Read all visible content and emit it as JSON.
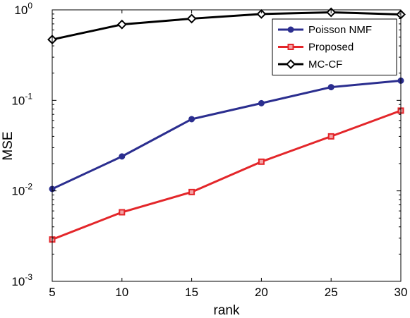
{
  "chart_data": {
    "type": "line",
    "xlabel": "rank",
    "ylabel": "MSE",
    "yscale": "log",
    "x": [
      5,
      10,
      15,
      20,
      25,
      30
    ],
    "xlim": [
      5,
      30
    ],
    "ylim": [
      0.001,
      1
    ],
    "x_ticks": [
      "5",
      "10",
      "15",
      "20",
      "25",
      "30"
    ],
    "y_ticks": [
      {
        "value": 0.001,
        "base": "10",
        "exp": "-3"
      },
      {
        "value": 0.01,
        "base": "10",
        "exp": "-2"
      },
      {
        "value": 0.1,
        "base": "10",
        "exp": "-1"
      },
      {
        "value": 1,
        "base": "10",
        "exp": "0"
      }
    ],
    "grid": false,
    "legend_position": "top-right",
    "series": [
      {
        "name": "Poisson NMF",
        "color": "#2B2E8F",
        "marker": "circle",
        "values": [
          0.0105,
          0.024,
          0.062,
          0.093,
          0.14,
          0.165
        ]
      },
      {
        "name": "Proposed",
        "color": "#E3262A",
        "marker": "square",
        "values": [
          0.0029,
          0.0058,
          0.0097,
          0.021,
          0.04,
          0.077
        ]
      },
      {
        "name": "MC-CF",
        "color": "#000000",
        "marker": "diamond",
        "values": [
          0.47,
          0.69,
          0.8,
          0.9,
          0.94,
          0.89
        ]
      }
    ]
  }
}
